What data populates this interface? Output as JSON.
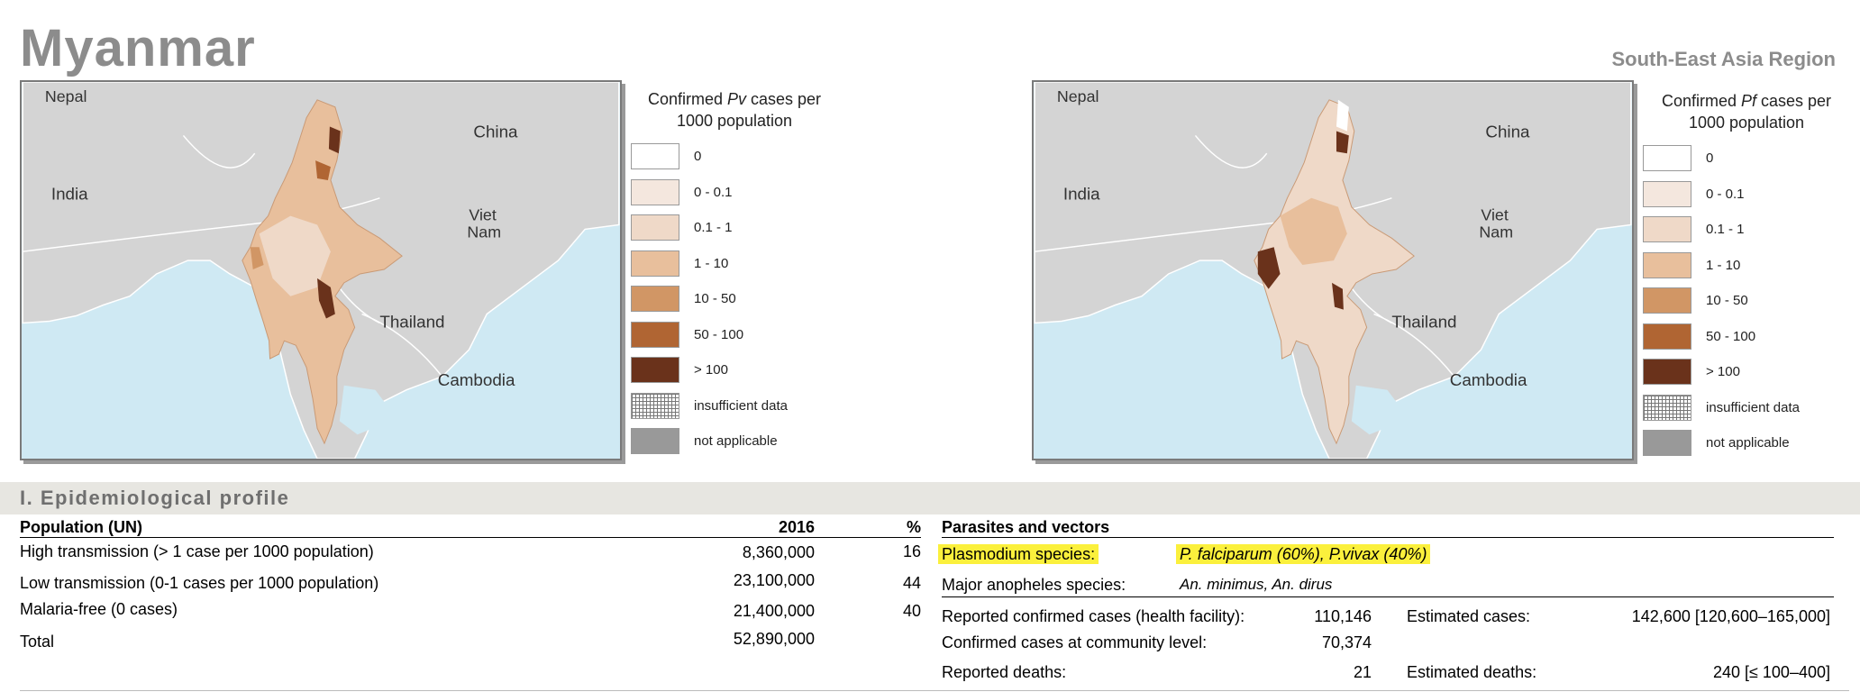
{
  "header": {
    "country": "Myanmar",
    "region": "South-East Asia Region"
  },
  "maps": {
    "pv": {
      "legend_title_pre": "Confirmed ",
      "legend_title_species": "Pv",
      "legend_title_post": " cases per",
      "legend_title_line2": "1000 population",
      "labels": {
        "nepal": "Nepal",
        "china": "China",
        "india": "India",
        "viet": "Viet",
        "nam": "Nam",
        "thailand": "Thailand",
        "cambodia": "Cambodia"
      }
    },
    "pf": {
      "legend_title_pre": "Confirmed ",
      "legend_title_species": "Pf",
      "legend_title_post": " cases per",
      "legend_title_line2": "1000 population",
      "labels": {
        "nepal": "Nepal",
        "china": "China",
        "india": "India",
        "viet": "Viet",
        "nam": "Nam",
        "thailand": "Thailand",
        "cambodia": "Cambodia"
      }
    },
    "legend": [
      {
        "label": "0",
        "color": "#ffffff"
      },
      {
        "label": "0 - 0.1",
        "color": "#f4e7de"
      },
      {
        "label": "0.1 - 1",
        "color": "#efd9c8"
      },
      {
        "label": "1 - 10",
        "color": "#e8bf9c"
      },
      {
        "label": "10 - 50",
        "color": "#d19665"
      },
      {
        "label": "50 - 100",
        "color": "#b06533"
      },
      {
        "label": "> 100",
        "color": "#6a321b"
      },
      {
        "label": "insufficient data",
        "color": "#ffffff"
      },
      {
        "label": "not applicable",
        "color": "#999999"
      }
    ]
  },
  "profile": {
    "section_title": "I. Epidemiological profile",
    "population": {
      "header": "Population (UN)",
      "year": "2016",
      "pct_header": "%",
      "rows": [
        {
          "label": "High transmission (> 1 case per 1000 population)",
          "value": "8,360,000",
          "pct": "16"
        },
        {
          "label": "Low transmission (0-1 cases per 1000 population)",
          "value": "23,100,000",
          "pct": "44"
        },
        {
          "label": "Malaria-free (0 cases)",
          "value": "21,400,000",
          "pct": "40"
        },
        {
          "label": "Total",
          "value": "52,890,000",
          "pct": ""
        }
      ]
    },
    "parasites": {
      "header": "Parasites and vectors",
      "plasmodium_label": "Plasmodium species:",
      "plasmodium_value": "P. falciparum (60%), P.vivax (40%)",
      "anopheles_label": "Major anopheles species:",
      "anopheles_value": "An. minimus, An. dirus"
    },
    "cases": {
      "reported_confirmed_label": "Reported confirmed cases (health facility):",
      "reported_confirmed_value": "110,146",
      "community_label": "Confirmed cases at community level:",
      "community_value": "70,374",
      "reported_deaths_label": "Reported deaths:",
      "reported_deaths_value": "21",
      "estimated_cases_label": "Estimated cases:",
      "estimated_cases_value": "142,600 [120,600–165,000]",
      "estimated_deaths_label": "Estimated deaths:",
      "estimated_deaths_value": "240 [≤ 100–400]"
    }
  }
}
